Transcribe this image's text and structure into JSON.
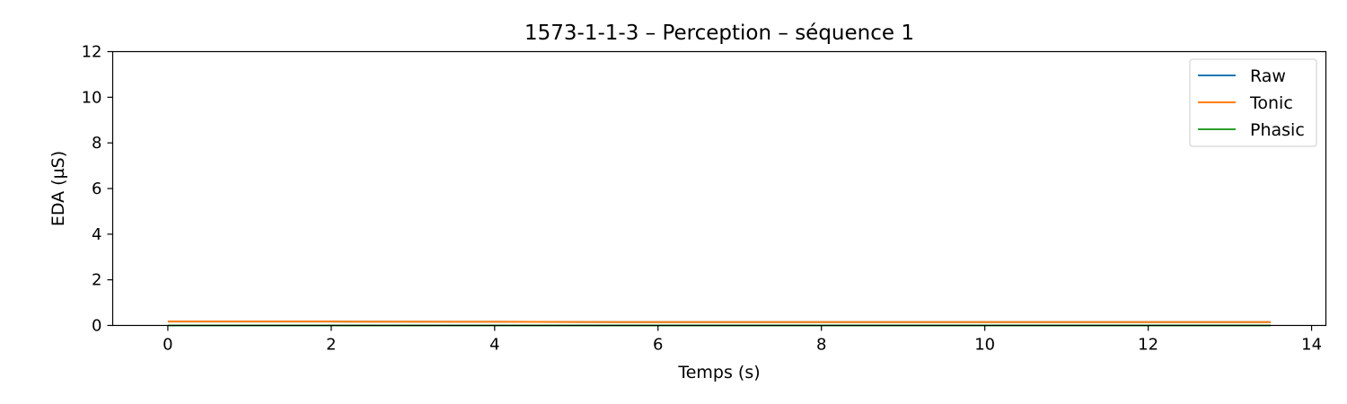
{
  "chart_data": {
    "type": "line",
    "title": "1573-1-1-3 – Perception – séquence 1",
    "xlabel": "Temps (s)",
    "ylabel": "EDA (µS)",
    "xlim": [
      -0.675,
      14.175
    ],
    "ylim": [
      0,
      12
    ],
    "xticks": [
      0,
      2,
      4,
      6,
      8,
      10,
      12,
      14
    ],
    "yticks": [
      0,
      2,
      4,
      6,
      8,
      10,
      12
    ],
    "grid": false,
    "legend_position": "top-right",
    "series": [
      {
        "name": "Raw",
        "color": "#1f77b4",
        "x": [
          0,
          2,
          4,
          5.5,
          8,
          10,
          12,
          13.5
        ],
        "y": [
          0.17,
          0.17,
          0.16,
          0.15,
          0.15,
          0.15,
          0.15,
          0.15
        ]
      },
      {
        "name": "Tonic",
        "color": "#ff7f0e",
        "x": [
          0,
          2,
          4,
          5.5,
          8,
          10,
          12,
          13.5
        ],
        "y": [
          0.17,
          0.17,
          0.16,
          0.15,
          0.15,
          0.15,
          0.15,
          0.15
        ]
      },
      {
        "name": "Phasic",
        "color": "#2ca02c",
        "x": [
          0,
          2,
          4,
          6,
          8,
          10,
          12,
          13.5
        ],
        "y": [
          0.0,
          0.0,
          0.0,
          0.0,
          0.0,
          0.0,
          0.0,
          0.0
        ]
      }
    ]
  }
}
